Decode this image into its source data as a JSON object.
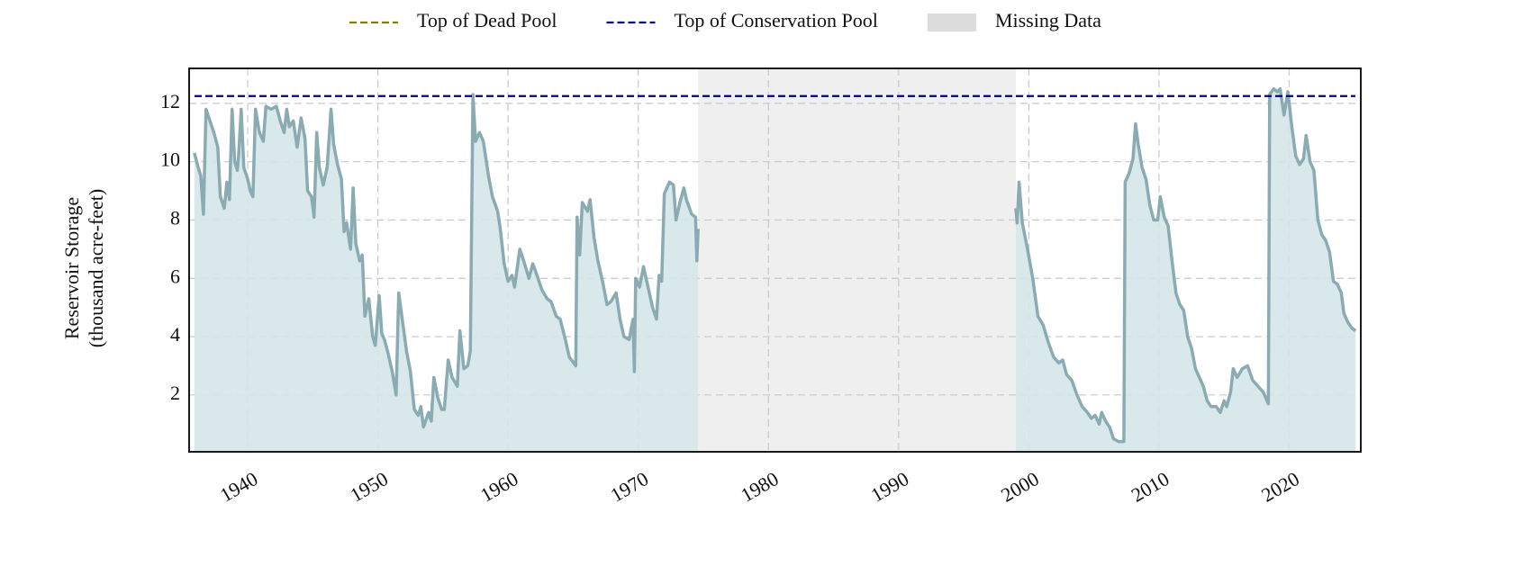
{
  "chart_data": {
    "type": "line",
    "y_label": [
      "Reservoir Storage",
      "(thousand acre-feet)"
    ],
    "color": "#8aabb2",
    "fill_color": "#d5e5e8",
    "x": [
      1935.9,
      1936.2,
      1936.4,
      1936.6,
      1936.8,
      1937.1,
      1937.4,
      1937.7,
      1937.9,
      1938.2,
      1938.4,
      1938.6,
      1938.8,
      1939.0,
      1939.2,
      1939.3,
      1939.5,
      1939.7,
      1940.0,
      1940.2,
      1940.4,
      1940.6,
      1940.9,
      1941.2,
      1941.4,
      1941.8,
      1942.2,
      1942.5,
      1942.8,
      1943.0,
      1943.2,
      1943.5,
      1943.8,
      1944.1,
      1944.4,
      1944.6,
      1944.9,
      1945.1,
      1945.3,
      1945.5,
      1945.8,
      1946.1,
      1946.4,
      1946.6,
      1946.9,
      1947.2,
      1947.4,
      1947.6,
      1947.9,
      1948.1,
      1948.3,
      1948.6,
      1948.8,
      1949.0,
      1949.3,
      1949.6,
      1949.8,
      1950.1,
      1950.3,
      1950.5,
      1950.8,
      1951.1,
      1951.4,
      1951.6,
      1951.9,
      1952.2,
      1952.5,
      1952.8,
      1953.1,
      1953.3,
      1953.5,
      1953.9,
      1954.1,
      1954.3,
      1954.6,
      1954.9,
      1955.1,
      1955.4,
      1955.7,
      1956.1,
      1956.3,
      1956.6,
      1956.9,
      1957.1,
      1957.3,
      1957.5,
      1957.8,
      1958.1,
      1958.5,
      1958.8,
      1959.2,
      1959.4,
      1959.7,
      1960.0,
      1960.3,
      1960.5,
      1960.9,
      1961.2,
      1961.6,
      1961.9,
      1962.3,
      1962.6,
      1963.0,
      1963.3,
      1963.7,
      1964.0,
      1964.4,
      1964.7,
      1965.2,
      1965.3,
      1965.5,
      1965.7,
      1966.1,
      1966.3,
      1966.6,
      1966.9,
      1967.3,
      1967.6,
      1967.9,
      1968.3,
      1968.6,
      1968.9,
      1969.3,
      1969.6,
      1969.7,
      1969.8,
      1970.1,
      1970.4,
      1970.8,
      1971.1,
      1971.4,
      1971.6,
      1971.8,
      1972.0,
      1972.4,
      1972.7,
      1972.9,
      1973.2,
      1973.5,
      1973.7,
      1974.1,
      1974.4,
      1974.5,
      1974.6,
      null,
      1999.0,
      1999.1,
      1999.25,
      1999.5,
      1999.9,
      2000.3,
      2000.7,
      2001.1,
      2001.5,
      2001.9,
      2002.3,
      2002.6,
      2002.9,
      2003.3,
      2003.7,
      2004.1,
      2004.5,
      2004.8,
      2005.1,
      2005.4,
      2005.6,
      2005.9,
      2006.2,
      2006.5,
      2006.9,
      2007.3,
      2007.4,
      2007.7,
      2008.0,
      2008.2,
      2008.4,
      2008.7,
      2009.0,
      2009.3,
      2009.6,
      2009.9,
      2010.1,
      2010.4,
      2010.7,
      2011.0,
      2011.3,
      2011.6,
      2011.9,
      2012.2,
      2012.5,
      2012.8,
      2013.1,
      2013.4,
      2013.7,
      2014.0,
      2014.4,
      2014.7,
      2015.0,
      2015.2,
      2015.5,
      2015.7,
      2016.0,
      2016.4,
      2016.8,
      2017.2,
      2017.6,
      2018.0,
      2018.4,
      2018.5,
      2018.8,
      2019.1,
      2019.3,
      2019.6,
      2019.9,
      2020.2,
      2020.5,
      2020.8,
      2021.1,
      2021.3,
      2021.6,
      2021.9,
      2022.2,
      2022.5,
      2022.8,
      2023.1,
      2023.4,
      2023.7,
      2024.0,
      2024.2,
      2024.5,
      2024.8,
      2025.1
    ],
    "values": [
      10.3,
      9.8,
      9.5,
      8.2,
      11.8,
      11.4,
      11.0,
      10.5,
      8.8,
      8.4,
      9.3,
      8.7,
      11.8,
      10.0,
      9.7,
      10.2,
      11.8,
      9.8,
      9.4,
      9.0,
      8.8,
      11.8,
      11.0,
      10.7,
      11.9,
      11.8,
      11.9,
      11.4,
      11.0,
      11.8,
      11.2,
      11.4,
      10.5,
      11.5,
      10.8,
      9.0,
      8.8,
      8.1,
      11.0,
      9.8,
      9.2,
      9.8,
      11.8,
      10.6,
      9.9,
      9.4,
      7.6,
      7.9,
      7.0,
      9.1,
      7.2,
      6.6,
      6.8,
      4.7,
      5.3,
      4.0,
      3.7,
      5.4,
      4.1,
      3.9,
      3.4,
      2.8,
      2.0,
      5.5,
      4.5,
      3.5,
      2.8,
      1.5,
      1.3,
      1.6,
      0.9,
      1.4,
      1.1,
      2.6,
      1.9,
      1.5,
      1.5,
      3.2,
      2.6,
      2.3,
      4.2,
      2.9,
      3.0,
      3.5,
      12.3,
      10.7,
      11.0,
      10.7,
      9.5,
      8.8,
      8.3,
      7.7,
      6.5,
      5.9,
      6.1,
      5.7,
      7.0,
      6.6,
      6.0,
      6.5,
      6.0,
      5.6,
      5.3,
      5.2,
      4.7,
      4.6,
      3.9,
      3.3,
      3.0,
      8.1,
      6.8,
      8.6,
      8.3,
      8.7,
      7.4,
      6.6,
      5.8,
      5.1,
      5.2,
      5.5,
      4.6,
      4.0,
      3.9,
      4.6,
      2.8,
      6.0,
      5.7,
      6.4,
      5.6,
      5.0,
      4.6,
      6.1,
      5.9,
      8.9,
      9.3,
      9.2,
      8.0,
      8.6,
      9.1,
      8.7,
      8.2,
      8.1,
      6.6,
      7.7,
      null,
      8.4,
      7.9,
      9.3,
      7.9,
      7.0,
      6.0,
      4.7,
      4.4,
      3.8,
      3.3,
      3.1,
      3.2,
      2.7,
      2.5,
      2.0,
      1.6,
      1.4,
      1.2,
      1.3,
      1.0,
      1.4,
      1.1,
      0.9,
      0.5,
      0.4,
      0.4,
      9.3,
      9.6,
      10.1,
      11.3,
      10.6,
      9.8,
      9.4,
      8.5,
      8.0,
      8.0,
      8.8,
      8.1,
      7.8,
      6.6,
      5.5,
      5.1,
      4.9,
      4.0,
      3.6,
      2.9,
      2.6,
      2.3,
      1.8,
      1.6,
      1.6,
      1.4,
      1.8,
      1.6,
      2.1,
      2.9,
      2.6,
      2.9,
      3.0,
      2.5,
      2.3,
      2.1,
      1.7,
      12.3,
      12.5,
      12.4,
      12.5,
      11.6,
      12.4,
      11.2,
      10.2,
      9.9,
      10.1,
      10.9,
      10.0,
      9.7,
      8.0,
      7.5,
      7.3,
      6.9,
      5.9,
      5.8,
      5.5,
      4.8,
      4.5,
      4.3,
      4.2
    ],
    "xlim": [
      1935.5,
      2025.5
    ],
    "ylim": [
      0.05,
      13.2
    ],
    "xticks": [
      1940,
      1950,
      1960,
      1970,
      1980,
      1990,
      2000,
      2010,
      2020
    ],
    "yticks": [
      2,
      4,
      6,
      8,
      10,
      12
    ],
    "grid": true,
    "reference_lines": [
      {
        "name": "Top of Dead Pool",
        "color": "#808000"
      },
      {
        "name": "Top of Conservation Pool",
        "color": "#00008b",
        "value": 12.25
      }
    ],
    "missing_data": {
      "name": "Missing Data",
      "color": "#dcdcdc",
      "spans": [
        [
          1974.6,
          1999.0
        ]
      ]
    }
  }
}
